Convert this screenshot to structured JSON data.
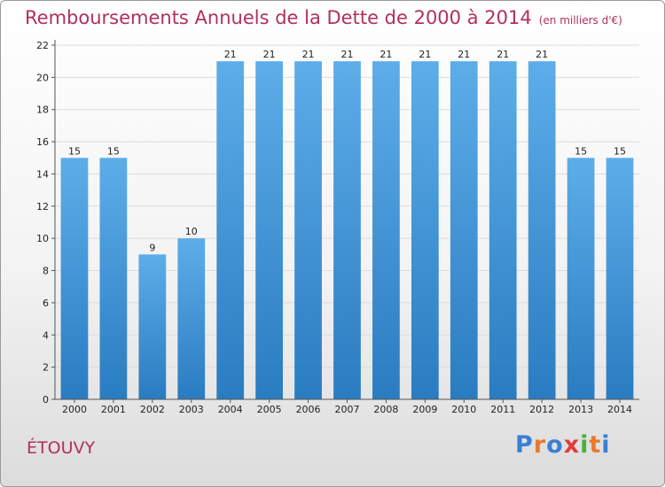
{
  "header": {
    "title": "Remboursements Annuels de la Dette de 2000 à 2014",
    "unit": "(en milliers d'€)"
  },
  "footer": {
    "commune": "ÉTOUVY",
    "logo": "Proxiti",
    "logo_letters": [
      "P",
      "r",
      "o",
      "x",
      "i",
      "t",
      "i"
    ],
    "logo_colors": [
      "#3a7fd5",
      "#e8792b",
      "#3a7fd5",
      "#e23b3b",
      "#4caf3a",
      "#e8792b",
      "#3a7fd5"
    ]
  },
  "colors": {
    "bar_light": "#5dade9",
    "bar_dark": "#2a7cc1",
    "text": "#222222",
    "accent": "#b03060"
  },
  "chart_data": {
    "type": "bar",
    "title": "Remboursements Annuels de la Dette de 2000 à 2014",
    "ylabel": "en milliers d'€",
    "xlabel": "",
    "categories": [
      "2000",
      "2001",
      "2002",
      "2003",
      "2004",
      "2005",
      "2006",
      "2007",
      "2008",
      "2009",
      "2010",
      "2011",
      "2012",
      "2013",
      "2014"
    ],
    "values": [
      15,
      15,
      9,
      10,
      21,
      21,
      21,
      21,
      21,
      21,
      21,
      21,
      21,
      15,
      15
    ],
    "ylim": [
      0,
      22
    ],
    "yticks": [
      0,
      2,
      4,
      6,
      8,
      10,
      12,
      14,
      16,
      18,
      20,
      22
    ],
    "grid": true
  }
}
